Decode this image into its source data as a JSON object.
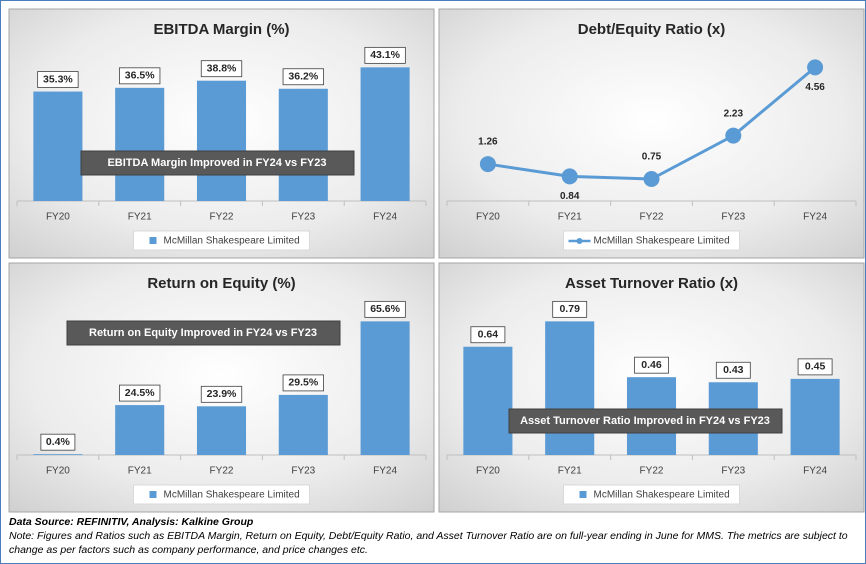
{
  "chart_data": [
    {
      "type": "bar",
      "title": "EBITDA Margin (%)",
      "categories": [
        "FY20",
        "FY21",
        "FY22",
        "FY23",
        "FY24"
      ],
      "series": [
        {
          "name": "McMillan Shakespeare Limited",
          "color": "#5b9bd5",
          "values": [
            35.3,
            36.5,
            38.8,
            36.2,
            43.1
          ],
          "value_labels": [
            "35.3%",
            "36.5%",
            "38.8%",
            "36.2%",
            "43.1%"
          ]
        }
      ],
      "annotation": "EBITDA Margin Improved in FY24 vs FY23"
    },
    {
      "type": "line",
      "title": "Debt/Equity Ratio (x)",
      "categories": [
        "FY20",
        "FY21",
        "FY22",
        "FY23",
        "FY24"
      ],
      "series": [
        {
          "name": "McMillan Shakespeare Limited",
          "color": "#5b9bd5",
          "values": [
            1.26,
            0.84,
            0.75,
            2.23,
            4.56
          ]
        }
      ]
    },
    {
      "type": "bar",
      "title": "Return on Equity (%)",
      "categories": [
        "FY20",
        "FY21",
        "FY22",
        "FY23",
        "FY24"
      ],
      "series": [
        {
          "name": "McMillan Shakespeare Limited",
          "color": "#5b9bd5",
          "values": [
            0.4,
            24.5,
            23.9,
            29.5,
            65.6
          ],
          "value_labels": [
            "0.4%",
            "24.5%",
            "23.9%",
            "29.5%",
            "65.6%"
          ]
        }
      ],
      "annotation": "Return on Equity Improved in FY24 vs FY23"
    },
    {
      "type": "bar",
      "title": "Asset Turnover Ratio (x)",
      "categories": [
        "FY20",
        "FY21",
        "FY22",
        "FY23",
        "FY24"
      ],
      "series": [
        {
          "name": "McMillan Shakespeare Limited",
          "color": "#5b9bd5",
          "values": [
            0.64,
            0.79,
            0.46,
            0.43,
            0.45
          ]
        }
      ],
      "annotation": "Asset Turnover Ratio Improved in FY24 vs FY23"
    }
  ],
  "source": "Data Source: REFINITIV, Analysis: Kalkine Group",
  "note": "Note: Figures and Ratios such as EBITDA Margin, Return on Equity, Debt/Equity Ratio, and Asset Turnover Ratio are on full-year ending in June for MMS. The metrics are subject to change as per factors such as company performance, and price changes etc."
}
